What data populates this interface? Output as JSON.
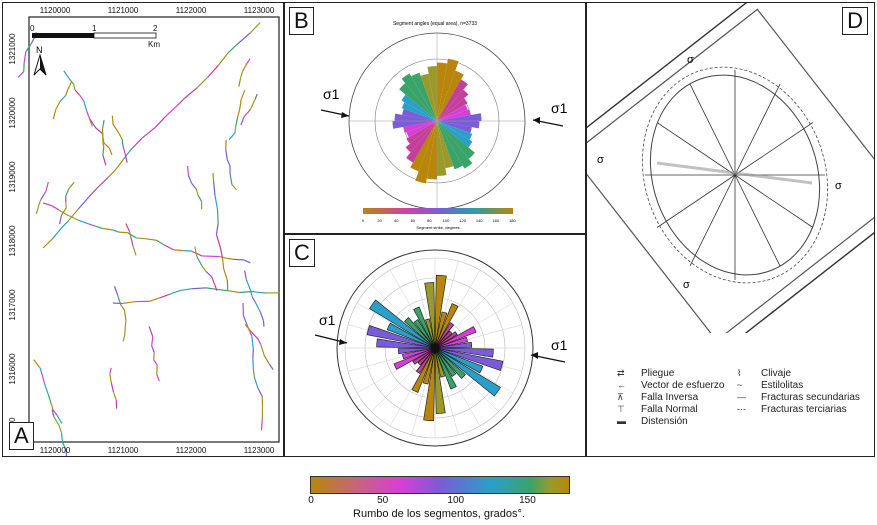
{
  "panels": {
    "a": {
      "label": "A",
      "north": "N",
      "scale_ticks": [
        "0",
        "1",
        "2"
      ],
      "scale_unit": "Km",
      "x_ticks": [
        "1120000",
        "1121000",
        "1122000",
        "1123000"
      ],
      "y_ticks": [
        "1321000",
        "1320000",
        "1319000",
        "1318000",
        "1317000",
        "1316000",
        "1315000"
      ]
    },
    "b": {
      "label": "B",
      "title": "Segment angles (equal area), n=3733",
      "sigma": "σ1",
      "cb_ticks": [
        "0",
        "20",
        "40",
        "60",
        "80",
        "100",
        "120",
        "140",
        "160",
        "180"
      ],
      "cb_label": "Segment strike, degrees"
    },
    "c": {
      "label": "C",
      "sigma": "σ1"
    },
    "d": {
      "label": "D",
      "sigma": "σ",
      "legend": [
        {
          "icon": "fold-icon",
          "label": "Pliegue"
        },
        {
          "icon": "stress-vector-icon",
          "label": "Vector de esfuerzo"
        },
        {
          "icon": "reverse-fault-icon",
          "label": "Falla Inversa"
        },
        {
          "icon": "normal-fault-icon",
          "label": "Falla Normal"
        },
        {
          "icon": "extension-icon",
          "label": "Distensión"
        },
        {
          "icon": "cleavage-icon",
          "label": "Clivaje"
        },
        {
          "icon": "stylolite-icon",
          "label": "Estilolitas"
        },
        {
          "icon": "secondary-fracture-icon",
          "label": "Fracturas secundarias"
        },
        {
          "icon": "tertiary-fracture-icon",
          "label": "Fracturas terciarias"
        }
      ]
    }
  },
  "colorbar": {
    "ticks": [
      "0",
      "50",
      "100",
      "150"
    ],
    "label": "Rumbo de los segmentos, grados°.",
    "colors": [
      "#b8860b",
      "#c33f9a",
      "#d63fd6",
      "#7a5cd8",
      "#2aa0c8",
      "#3aa36a",
      "#9a9a2a",
      "#b8860b"
    ]
  },
  "chart_data": {
    "type": "rose",
    "categories": [
      "0-10",
      "10-20",
      "20-30",
      "30-40",
      "40-50",
      "50-60",
      "60-70",
      "70-80",
      "80-90",
      "90-100",
      "100-110",
      "110-120",
      "120-130",
      "130-140",
      "140-150",
      "150-160",
      "160-170",
      "170-180"
    ],
    "values": [
      0.55,
      0.62,
      0.48,
      0.4,
      0.3,
      0.22,
      0.18,
      0.2,
      0.35,
      0.32,
      0.22,
      0.25,
      0.3,
      0.42,
      0.5,
      0.45,
      0.4,
      0.5
    ]
  }
}
